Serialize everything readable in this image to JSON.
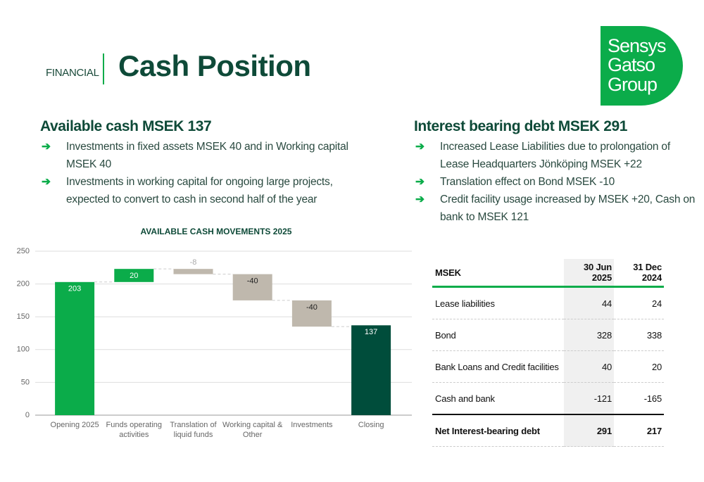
{
  "header": {
    "section": "FINANCIAL",
    "title": "Cash Position",
    "logo": [
      "Sensys",
      "Gatso",
      "Group"
    ]
  },
  "left": {
    "heading": "Available cash MSEK 137",
    "bullets": [
      "Investments in fixed assets MSEK 40 and in Working capital MSEK 40",
      "Investments in working capital for ongoing large projects, expected to convert to cash in second half of the year"
    ]
  },
  "right": {
    "heading": "Interest bearing debt MSEK 291",
    "bullets": [
      "Increased Lease Liabilities due to prolongation of Lease Headquarters Jönköping MSEK +22",
      "Translation effect on Bond MSEK -10",
      "Credit facility usage increased by MSEK +20, Cash on bank to MSEK 121"
    ]
  },
  "chart_data": {
    "type": "waterfall",
    "title": "AVAILABLE CASH MOVEMENTS 2025",
    "categories": [
      "Opening 2025",
      "Funds operating activities",
      "Translation of liquid funds",
      "Working capital & Other",
      "Investments",
      "Closing"
    ],
    "values": [
      203,
      20,
      -8,
      -40,
      -40,
      137
    ],
    "colors": [
      "#0bac4a",
      "#0bac4a",
      "#bfb8ad",
      "#bfb8ad",
      "#bfb8ad",
      "#004d3b"
    ],
    "ylim": [
      0,
      250
    ],
    "yticks": [
      0,
      50,
      100,
      150,
      200,
      250
    ],
    "grid": true
  },
  "table": {
    "header": [
      "MSEK",
      "30 Jun 2025",
      "31 Dec 2024"
    ],
    "rows": [
      [
        "Lease liabilities",
        44,
        24
      ],
      [
        "Bond",
        328,
        338
      ],
      [
        "Bank Loans and Credit facilities",
        40,
        20
      ],
      [
        "Cash and bank",
        -121,
        -165
      ]
    ],
    "total": [
      "Net Interest-bearing debt",
      291,
      217
    ]
  }
}
